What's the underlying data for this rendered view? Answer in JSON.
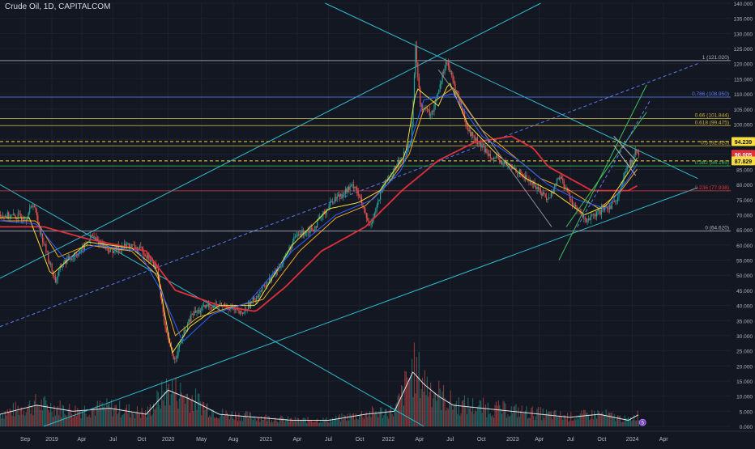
{
  "header": {
    "title": "Crude Oil, 1D, CAPITALCOM"
  },
  "colors": {
    "background": "#131722",
    "grid": "#1e222d",
    "up": "#26a69a",
    "down": "#ef5350",
    "channel": "#2fbccf",
    "ma_red": "#e0303a",
    "ma_orange": "#f5a623",
    "ma_yellow": "#f6dd3d",
    "ma_blue": "#2962ff",
    "fib_white": "#b2b5be",
    "fib_yellow": "#c9b23a",
    "fib_green": "#3fbf5a",
    "fib_blue": "#5b7cf0",
    "fib_red": "#d83a3a"
  },
  "chart_data": {
    "type": "candlestick",
    "x_ticks": [
      "Sep",
      "2019",
      "Apr",
      "Jul",
      "Oct",
      "2020",
      "May",
      "Aug",
      "2021",
      "Apr",
      "Jul",
      "Oct",
      "2022",
      "Apr",
      "Jul",
      "Oct",
      "2023",
      "Apr",
      "Jul",
      "Oct",
      "2024",
      "Apr"
    ],
    "y_ticks": [
      "140.000",
      "135.000",
      "130.000",
      "125.000",
      "120.000",
      "115.000",
      "110.000",
      "105.000",
      "100.000",
      "95.000",
      "90.000",
      "85.000",
      "80.000",
      "75.000",
      "70.000",
      "65.000",
      "60.000",
      "55.000",
      "50.000",
      "45.000",
      "40.000",
      "35.000",
      "30.000",
      "25.000",
      "20.000",
      "15.000",
      "10.000",
      "5.000",
      "0.000"
    ],
    "ylim": [
      0,
      140
    ],
    "price_path": [
      [
        0,
        70
      ],
      [
        0.035,
        69
      ],
      [
        0.045,
        74
      ],
      [
        0.055,
        64
      ],
      [
        0.075,
        48
      ],
      [
        0.085,
        54
      ],
      [
        0.11,
        58
      ],
      [
        0.125,
        63
      ],
      [
        0.15,
        58
      ],
      [
        0.175,
        60
      ],
      [
        0.195,
        58
      ],
      [
        0.215,
        52
      ],
      [
        0.225,
        32
      ],
      [
        0.238,
        22
      ],
      [
        0.25,
        30
      ],
      [
        0.262,
        37
      ],
      [
        0.285,
        40
      ],
      [
        0.31,
        40
      ],
      [
        0.33,
        37
      ],
      [
        0.35,
        43
      ],
      [
        0.38,
        52
      ],
      [
        0.405,
        63
      ],
      [
        0.43,
        66
      ],
      [
        0.455,
        75
      ],
      [
        0.485,
        80
      ],
      [
        0.505,
        66
      ],
      [
        0.525,
        80
      ],
      [
        0.545,
        87
      ],
      [
        0.562,
        94
      ],
      [
        0.568,
        125
      ],
      [
        0.575,
        106
      ],
      [
        0.59,
        103
      ],
      [
        0.61,
        121
      ],
      [
        0.625,
        110
      ],
      [
        0.64,
        98
      ],
      [
        0.66,
        92
      ],
      [
        0.68,
        88
      ],
      [
        0.705,
        85
      ],
      [
        0.73,
        80
      ],
      [
        0.75,
        75
      ],
      [
        0.765,
        83
      ],
      [
        0.785,
        73
      ],
      [
        0.8,
        68
      ],
      [
        0.815,
        70
      ],
      [
        0.835,
        73
      ],
      [
        0.845,
        76
      ],
      [
        0.855,
        84
      ],
      [
        0.865,
        88
      ],
      [
        0.87,
        92
      ],
      [
        0.875,
        90
      ]
    ],
    "moving_averages": [
      {
        "name": "",
        "color": "ma_red",
        "path": [
          [
            0,
            66
          ],
          [
            0.06,
            66
          ],
          [
            0.12,
            62
          ],
          [
            0.2,
            58
          ],
          [
            0.24,
            45
          ],
          [
            0.3,
            40
          ],
          [
            0.35,
            38
          ],
          [
            0.39,
            46
          ],
          [
            0.44,
            58
          ],
          [
            0.5,
            66
          ],
          [
            0.55,
            78
          ],
          [
            0.6,
            88
          ],
          [
            0.65,
            94
          ],
          [
            0.7,
            96
          ],
          [
            0.73,
            92
          ],
          [
            0.75,
            86
          ],
          [
            0.78,
            82
          ],
          [
            0.81,
            78
          ],
          [
            0.84,
            78
          ],
          [
            0.86,
            78
          ],
          [
            0.875,
            80
          ]
        ]
      },
      {
        "name": "",
        "color": "ma_orange",
        "path": [
          [
            0,
            68
          ],
          [
            0.05,
            68
          ],
          [
            0.08,
            56
          ],
          [
            0.12,
            60
          ],
          [
            0.18,
            58
          ],
          [
            0.215,
            50
          ],
          [
            0.24,
            30
          ],
          [
            0.27,
            36
          ],
          [
            0.31,
            39
          ],
          [
            0.36,
            42
          ],
          [
            0.41,
            58
          ],
          [
            0.46,
            69
          ],
          [
            0.5,
            73
          ],
          [
            0.53,
            80
          ],
          [
            0.56,
            90
          ],
          [
            0.58,
            105
          ],
          [
            0.62,
            112
          ],
          [
            0.66,
            98
          ],
          [
            0.7,
            90
          ],
          [
            0.74,
            82
          ],
          [
            0.78,
            78
          ],
          [
            0.82,
            72
          ],
          [
            0.85,
            78
          ],
          [
            0.875,
            86
          ]
        ]
      },
      {
        "name": "",
        "color": "ma_yellow",
        "path": [
          [
            0,
            69
          ],
          [
            0.04,
            69
          ],
          [
            0.07,
            50
          ],
          [
            0.12,
            61
          ],
          [
            0.18,
            59
          ],
          [
            0.215,
            52
          ],
          [
            0.235,
            24
          ],
          [
            0.26,
            33
          ],
          [
            0.3,
            40
          ],
          [
            0.35,
            40
          ],
          [
            0.4,
            60
          ],
          [
            0.45,
            72
          ],
          [
            0.49,
            74
          ],
          [
            0.52,
            78
          ],
          [
            0.555,
            90
          ],
          [
            0.57,
            112
          ],
          [
            0.6,
            106
          ],
          [
            0.615,
            114
          ],
          [
            0.64,
            100
          ],
          [
            0.68,
            90
          ],
          [
            0.72,
            82
          ],
          [
            0.76,
            77
          ],
          [
            0.8,
            70
          ],
          [
            0.83,
            73
          ],
          [
            0.86,
            84
          ],
          [
            0.875,
            90
          ]
        ]
      },
      {
        "name": "",
        "color": "ma_blue",
        "path": [
          [
            0,
            68
          ],
          [
            0.05,
            67
          ],
          [
            0.09,
            55
          ],
          [
            0.13,
            60
          ],
          [
            0.19,
            58
          ],
          [
            0.22,
            45
          ],
          [
            0.25,
            28
          ],
          [
            0.29,
            37
          ],
          [
            0.34,
            41
          ],
          [
            0.4,
            58
          ],
          [
            0.46,
            70
          ],
          [
            0.51,
            75
          ],
          [
            0.55,
            85
          ],
          [
            0.58,
            108
          ],
          [
            0.62,
            110
          ],
          [
            0.66,
            96
          ],
          [
            0.71,
            88
          ],
          [
            0.75,
            80
          ],
          [
            0.79,
            75
          ],
          [
            0.83,
            72
          ],
          [
            0.86,
            82
          ],
          [
            0.875,
            88
          ]
        ]
      }
    ],
    "volume_scale_max": 35,
    "volume_envelope": [
      [
        0,
        4
      ],
      [
        0.05,
        7
      ],
      [
        0.1,
        5
      ],
      [
        0.15,
        6
      ],
      [
        0.2,
        4
      ],
      [
        0.23,
        12
      ],
      [
        0.26,
        9
      ],
      [
        0.3,
        4
      ],
      [
        0.35,
        3
      ],
      [
        0.4,
        2
      ],
      [
        0.45,
        2
      ],
      [
        0.5,
        4
      ],
      [
        0.54,
        5
      ],
      [
        0.565,
        18
      ],
      [
        0.58,
        14
      ],
      [
        0.6,
        10
      ],
      [
        0.62,
        7
      ],
      [
        0.66,
        6
      ],
      [
        0.7,
        5
      ],
      [
        0.74,
        4
      ],
      [
        0.78,
        3
      ],
      [
        0.82,
        4
      ],
      [
        0.86,
        2
      ],
      [
        0.875,
        4
      ]
    ],
    "fibonacci": [
      {
        "label": "1 (121.020)",
        "price": 121.02,
        "color": "fib_white"
      },
      {
        "label": "0.786 (108.950)",
        "price": 108.95,
        "color": "fib_blue"
      },
      {
        "label": "0.66 (101.844)",
        "price": 101.844,
        "color": "fib_yellow"
      },
      {
        "label": "0.618 (99.475)",
        "price": 99.475,
        "color": "fib_yellow"
      },
      {
        "label": "0.5 (92.820)",
        "price": 92.82,
        "color": "fib_yellow"
      },
      {
        "label": "0.382 (86.165)",
        "price": 86.165,
        "color": "fib_green"
      },
      {
        "label": "0.236 (77.938)",
        "price": 77.938,
        "color": "fib_red"
      },
      {
        "label": "0 (64.620)",
        "price": 64.62,
        "color": "fib_white"
      }
    ],
    "price_tags": [
      {
        "label": "94.239",
        "price": 94.239,
        "bg": "#f6dd3d",
        "fg": "#131722"
      },
      {
        "label": "90.005",
        "price": 90.005,
        "bg": "#e0303a",
        "fg": "#ffffff"
      },
      {
        "label": "87.829",
        "price": 87.829,
        "bg": "#f6dd3d",
        "fg": "#131722"
      }
    ],
    "dashed_levels": [
      {
        "price": 94.239,
        "color": "#f6dd3d"
      },
      {
        "price": 87.829,
        "color": "#f6dd3d"
      }
    ],
    "channel_lines": [
      {
        "p1": [
          0,
          49
        ],
        "p2": [
          0.74,
          140
        ],
        "color": "channel",
        "dash": false
      },
      {
        "p1": [
          0,
          33
        ],
        "p2": [
          0.955,
          120
        ],
        "color": "fib_blue",
        "dash": true
      },
      {
        "p1": [
          0.06,
          0
        ],
        "p2": [
          0.955,
          79
        ],
        "color": "channel",
        "dash": false
      },
      {
        "p1": [
          0,
          80
        ],
        "p2": [
          0.58,
          0
        ],
        "color": "channel",
        "dash": false
      },
      {
        "p1": [
          0.445,
          140
        ],
        "p2": [
          0.955,
          82
        ],
        "color": "channel",
        "dash": false
      }
    ],
    "trend_lines": [
      {
        "p1": [
          0.765,
          55
        ],
        "p2": [
          0.885,
          113
        ],
        "color": "fib_green",
        "dash": false
      },
      {
        "p1": [
          0.775,
          66
        ],
        "p2": [
          0.885,
          104
        ],
        "color": "fib_green",
        "dash": false
      },
      {
        "p1": [
          0.79,
          66
        ],
        "p2": [
          0.89,
          108
        ],
        "color": "fib_blue",
        "dash": true
      },
      {
        "p1": [
          0.84,
          93
        ],
        "p2": [
          0.87,
          83
        ],
        "color": "fib_white",
        "dash": false
      },
      {
        "p1": [
          0.84,
          96
        ],
        "p2": [
          0.87,
          88
        ],
        "color": "fib_white",
        "dash": false
      },
      {
        "p1": [
          0.6,
          118
        ],
        "p2": [
          0.755,
          66
        ],
        "color": "#8a8d96",
        "dash": false
      }
    ],
    "grid": true,
    "legend": "none"
  },
  "badge": {
    "text": "5"
  }
}
